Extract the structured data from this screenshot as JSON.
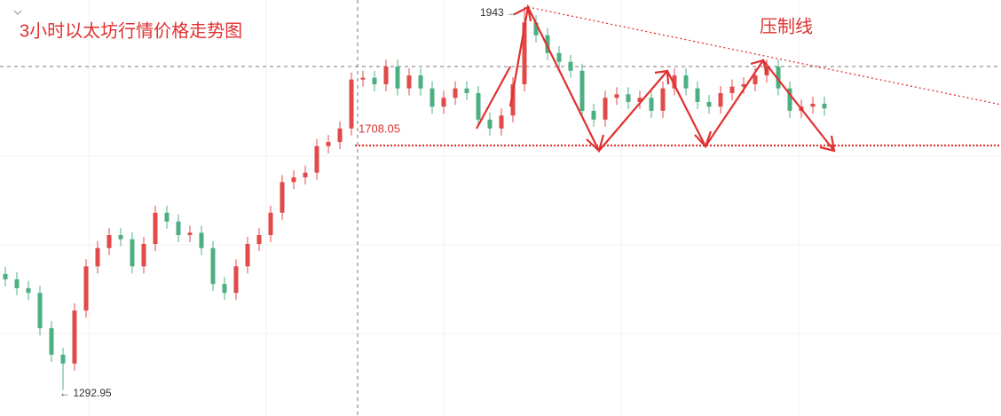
{
  "chart_data": {
    "type": "candlestick",
    "title": "3小时以太坊行情价格走势图",
    "annotation": "压制线",
    "ylim": [
      1249,
      1955
    ],
    "up_color": "#e24a4a",
    "down_color": "#4caf82",
    "open": [
      1490,
      1481,
      1466,
      1458,
      1398,
      1353,
      1338,
      1428,
      1503,
      1534,
      1556,
      1549,
      1503,
      1541,
      1594,
      1579,
      1556,
      1560,
      1534,
      1473,
      1458,
      1503,
      1541,
      1556,
      1594,
      1646,
      1654,
      1662,
      1707,
      1714,
      1737,
      1820,
      1823,
      1812,
      1842,
      1805,
      1827,
      1805,
      1774,
      1789,
      1805,
      1797,
      1752,
      1737,
      1759,
      1812,
      1917,
      1895,
      1865,
      1850,
      1835,
      1767,
      1752,
      1789,
      1795,
      1782,
      1789,
      1767,
      1805,
      1827,
      1805,
      1782,
      1774,
      1797,
      1808,
      1812,
      1827,
      1842,
      1805,
      1767,
      1774,
      1779
    ],
    "high": [
      1502,
      1493,
      1478,
      1470,
      1410,
      1365,
      1440,
      1515,
      1546,
      1568,
      1568,
      1561,
      1553,
      1606,
      1606,
      1591,
      1572,
      1572,
      1546,
      1485,
      1515,
      1553,
      1568,
      1606,
      1658,
      1666,
      1674,
      1719,
      1726,
      1749,
      1832,
      1835,
      1835,
      1854,
      1854,
      1839,
      1839,
      1817,
      1801,
      1817,
      1817,
      1809,
      1764,
      1771,
      1824,
      1943,
      1929,
      1907,
      1877,
      1862,
      1847,
      1779,
      1801,
      1807,
      1807,
      1801,
      1801,
      1817,
      1839,
      1839,
      1817,
      1794,
      1809,
      1820,
      1824,
      1839,
      1854,
      1854,
      1817,
      1786,
      1791,
      1791
    ],
    "low": [
      1469,
      1454,
      1446,
      1386,
      1341,
      1292.95,
      1326,
      1416,
      1491,
      1522,
      1537,
      1491,
      1491,
      1529,
      1567,
      1544,
      1544,
      1522,
      1461,
      1446,
      1446,
      1491,
      1529,
      1544,
      1582,
      1634,
      1642,
      1650,
      1695,
      1702,
      1725,
      1808,
      1800,
      1800,
      1793,
      1793,
      1793,
      1762,
      1762,
      1777,
      1785,
      1740,
      1725,
      1725,
      1747,
      1800,
      1883,
      1853,
      1838,
      1823,
      1755,
      1740,
      1740,
      1777,
      1770,
      1770,
      1755,
      1755,
      1793,
      1793,
      1770,
      1762,
      1762,
      1785,
      1796,
      1800,
      1815,
      1793,
      1755,
      1755,
      1762,
      1759
    ],
    "close": [
      1481,
      1466,
      1458,
      1398,
      1353,
      1338,
      1428,
      1503,
      1534,
      1556,
      1549,
      1503,
      1541,
      1594,
      1579,
      1556,
      1560,
      1534,
      1473,
      1458,
      1503,
      1541,
      1556,
      1594,
      1646,
      1654,
      1662,
      1707,
      1714,
      1737,
      1820,
      1823,
      1812,
      1842,
      1805,
      1827,
      1805,
      1774,
      1789,
      1805,
      1797,
      1752,
      1737,
      1759,
      1812,
      1917,
      1895,
      1865,
      1850,
      1835,
      1767,
      1752,
      1789,
      1795,
      1782,
      1789,
      1767,
      1805,
      1827,
      1805,
      1782,
      1774,
      1797,
      1808,
      1812,
      1827,
      1842,
      1805,
      1767,
      1774,
      1779,
      1771
    ],
    "high_marker": {
      "value": 1943,
      "label": "1943 →"
    },
    "low_marker": {
      "value": 1292.95,
      "label": "← 1292.95"
    },
    "support_level": 1708.05
  }
}
